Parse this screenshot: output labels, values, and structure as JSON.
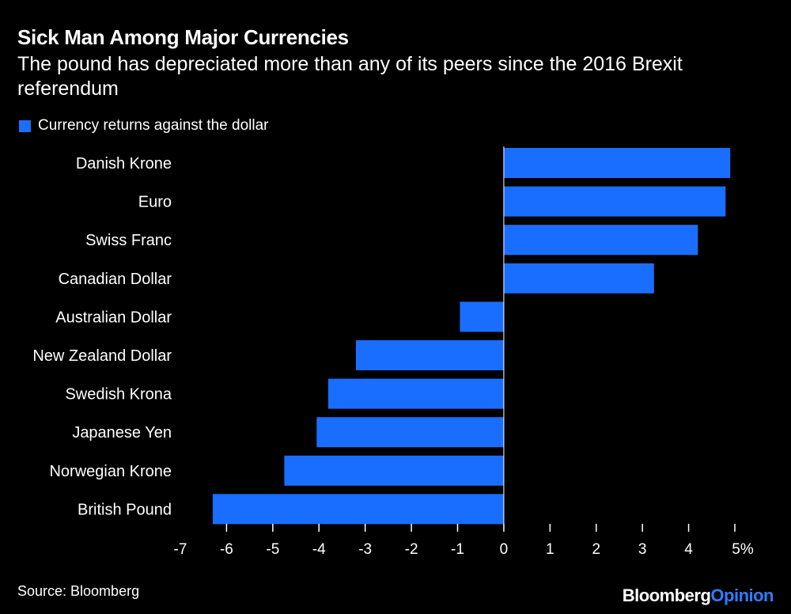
{
  "chart_data": {
    "type": "bar",
    "orientation": "horizontal",
    "title": "Sick Man Among Major Currencies",
    "subtitle": "The pound has depreciated more than any of its peers since the 2016 Brexit referendum",
    "legend": [
      "Currency returns against the dollar"
    ],
    "legend_position": "top-left",
    "categories": [
      "Danish Krone",
      "Euro",
      "Swiss Franc",
      "Canadian Dollar",
      "Australian Dollar",
      "New Zealand Dollar",
      "Swedish Krona",
      "Japanese Yen",
      "Norwegian Krone",
      "British Pound"
    ],
    "series": [
      {
        "name": "Currency returns against the dollar",
        "values": [
          4.9,
          4.8,
          4.2,
          3.25,
          -0.95,
          -3.2,
          -3.8,
          -4.05,
          -4.75,
          -6.3
        ]
      }
    ],
    "xlim": [
      -7,
      5
    ],
    "x_ticks": [
      -7,
      -6,
      -5,
      -4,
      -3,
      -2,
      -1,
      0,
      1,
      2,
      3,
      4,
      5
    ],
    "x_tick_labels": [
      "-7",
      "-6",
      "-5",
      "-4",
      "-3",
      "-2",
      "-1",
      "0",
      "1",
      "2",
      "3",
      "4",
      "5%"
    ],
    "grid": false
  },
  "colors": {
    "background": "#000000",
    "bar": "#1a6eff",
    "text": "#ffffff"
  },
  "source": "Source: Bloomberg",
  "brand": {
    "primary": "Bloomberg",
    "secondary": "Opinion",
    "secondary_color": "#2f7dff"
  }
}
